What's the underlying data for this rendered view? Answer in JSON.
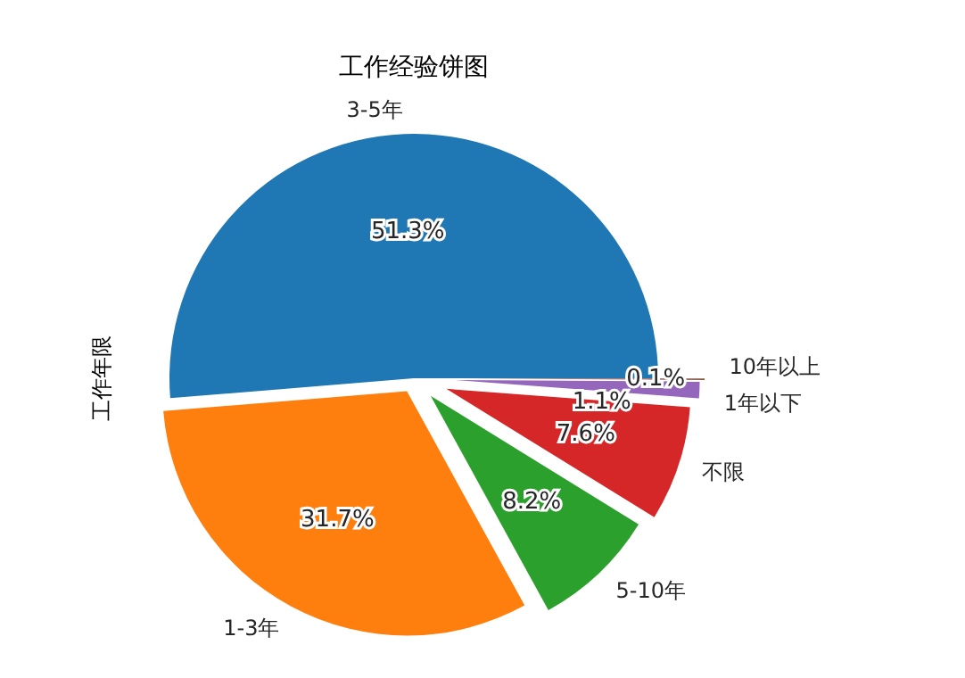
{
  "chart_data": {
    "type": "pie",
    "title": "工作经验饼图",
    "ylabel": "工作年限",
    "categories": [
      "3-5年",
      "1-3年",
      "5-10年",
      "不限",
      "1年以下",
      "10年以上"
    ],
    "values": [
      51.3,
      31.7,
      8.2,
      7.6,
      1.1,
      0.1
    ],
    "colors": [
      "#1f77b4",
      "#ff7f0e",
      "#2ca02c",
      "#d62728",
      "#9467bd",
      "#8c564b"
    ],
    "value_labels": [
      "51.3%",
      "31.7%",
      "8.2%",
      "7.6%",
      "1.1%",
      "0.1%"
    ]
  }
}
